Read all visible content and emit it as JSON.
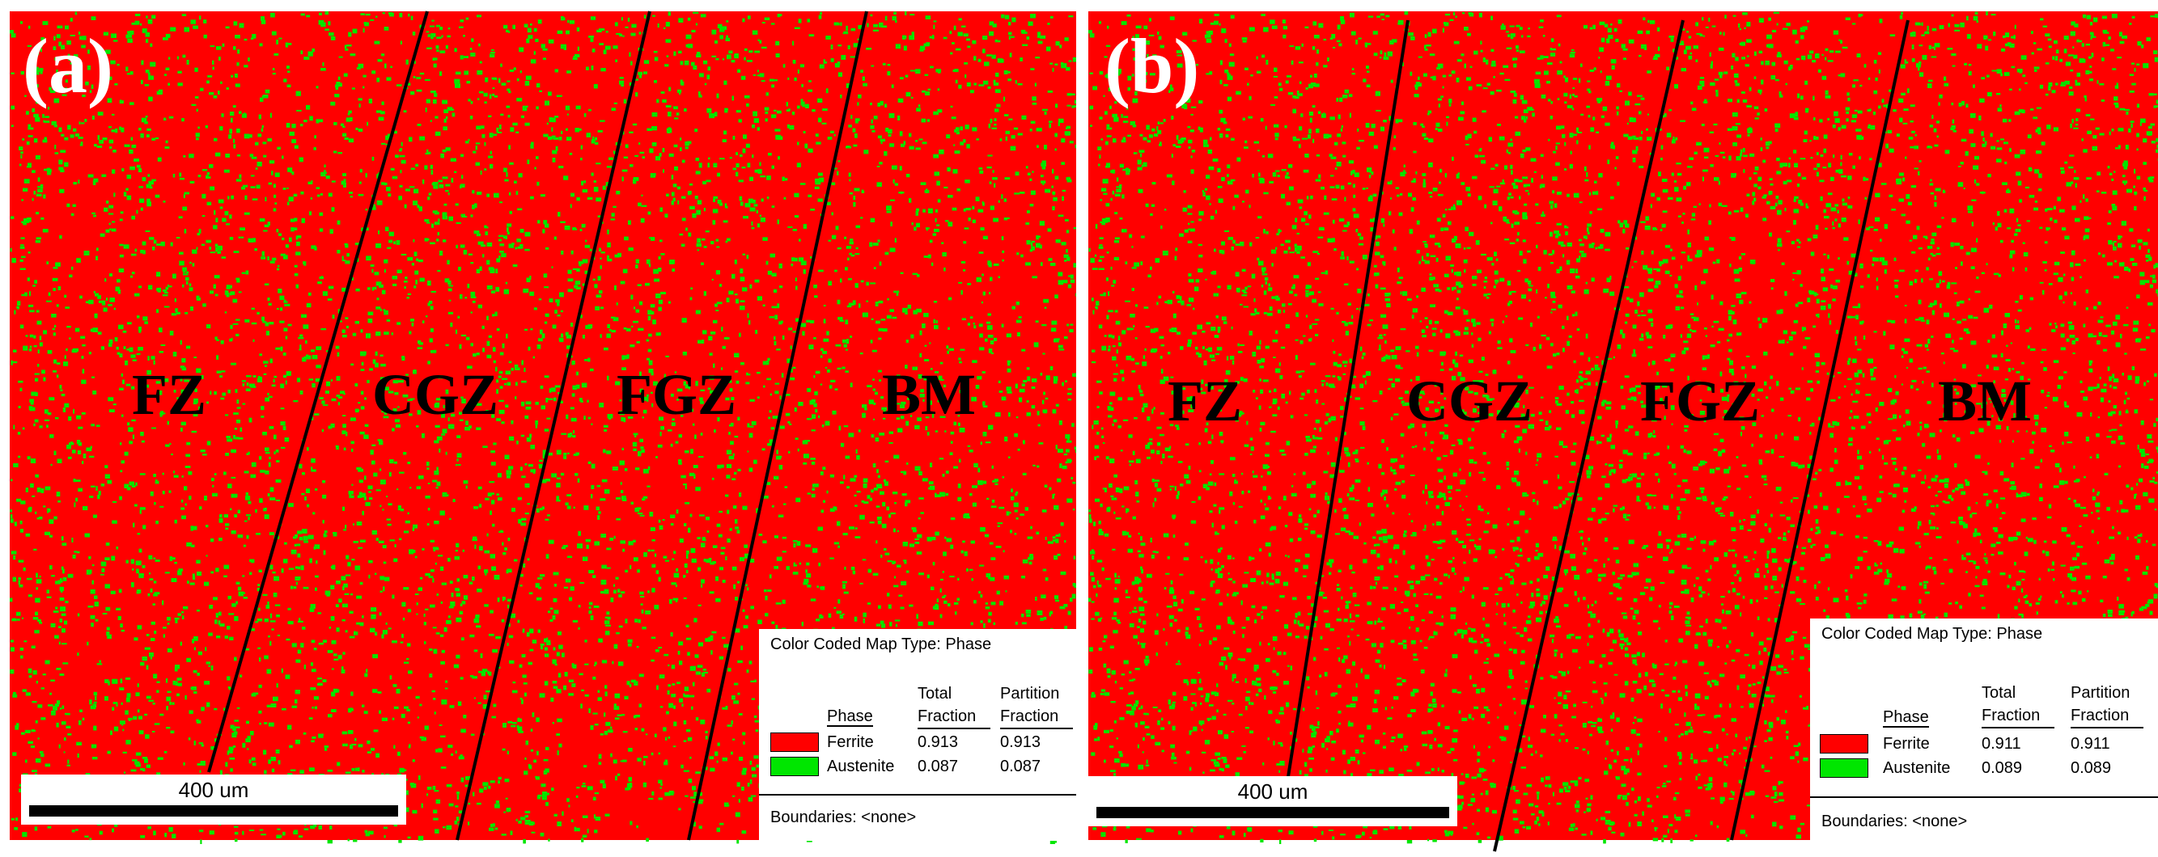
{
  "colors": {
    "ferrite": "#ff0000",
    "austenite": "#00e600",
    "boundary_line": "#000000"
  },
  "panels": [
    {
      "label": "(a)",
      "zones": [
        "FZ",
        "CGZ",
        "FGZ",
        "BM"
      ],
      "scalebar": "400 um",
      "legend": {
        "map_type": "Color Coded Map Type: Phase",
        "col_phase": "Phase",
        "col_total_1": "Total",
        "col_total_2": "Fraction",
        "col_partition_1": "Partition",
        "col_partition_2": "Fraction",
        "rows": [
          {
            "phase": "Ferrite",
            "total": "0.913",
            "partition": "0.913"
          },
          {
            "phase": "Austenite",
            "total": "0.087",
            "partition": "0.087"
          }
        ],
        "boundaries": "Boundaries: <none>"
      }
    },
    {
      "label": "(b)",
      "zones": [
        "FZ",
        "CGZ",
        "FGZ",
        "BM"
      ],
      "scalebar": "400 um",
      "legend": {
        "map_type": "Color Coded Map Type: Phase",
        "col_phase": "Phase",
        "col_total_1": "Total",
        "col_total_2": "Fraction",
        "col_partition_1": "Partition",
        "col_partition_2": "Fraction",
        "rows": [
          {
            "phase": "Ferrite",
            "total": "0.911",
            "partition": "0.911"
          },
          {
            "phase": "Austenite",
            "total": "0.089",
            "partition": "0.089"
          }
        ],
        "boundaries": "Boundaries: <none>"
      }
    }
  ]
}
